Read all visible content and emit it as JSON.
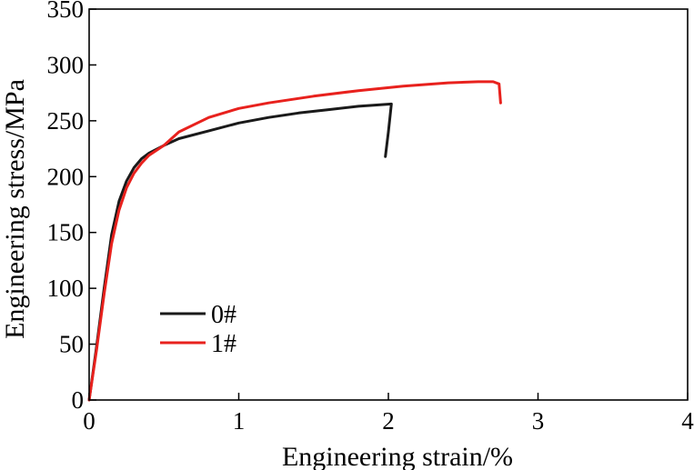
{
  "chart_data": {
    "type": "line",
    "title": "",
    "xlabel": "Engineering strain/%",
    "ylabel": "Engineering stress/MPa",
    "xlim": [
      0,
      4
    ],
    "ylim": [
      0,
      350
    ],
    "x_ticks": [
      0,
      1,
      2,
      3,
      4
    ],
    "y_ticks": [
      0,
      50,
      100,
      150,
      200,
      250,
      300,
      350
    ],
    "grid": false,
    "legend_position": "lower-left",
    "series": [
      {
        "name": "0#",
        "color": "#1a1a1a",
        "x": [
          0,
          0.05,
          0.1,
          0.15,
          0.2,
          0.25,
          0.3,
          0.35,
          0.4,
          0.5,
          0.6,
          0.8,
          1.0,
          1.2,
          1.4,
          1.6,
          1.8,
          1.9,
          2.02,
          2.0,
          1.98
        ],
        "y": [
          0,
          48,
          100,
          148,
          178,
          196,
          208,
          216,
          221,
          228,
          234,
          241,
          248,
          253,
          257,
          260,
          263,
          264,
          265,
          240,
          218
        ]
      },
      {
        "name": "1#",
        "color": "#e8211d",
        "x": [
          0,
          0.05,
          0.1,
          0.15,
          0.2,
          0.25,
          0.3,
          0.35,
          0.4,
          0.5,
          0.6,
          0.8,
          1.0,
          1.2,
          1.5,
          1.8,
          2.1,
          2.4,
          2.6,
          2.7,
          2.74,
          2.75
        ],
        "y": [
          0,
          45,
          95,
          140,
          170,
          190,
          203,
          212,
          219,
          228,
          240,
          253,
          261,
          266,
          272,
          277,
          281,
          284,
          285,
          285,
          283,
          266
        ]
      }
    ]
  }
}
